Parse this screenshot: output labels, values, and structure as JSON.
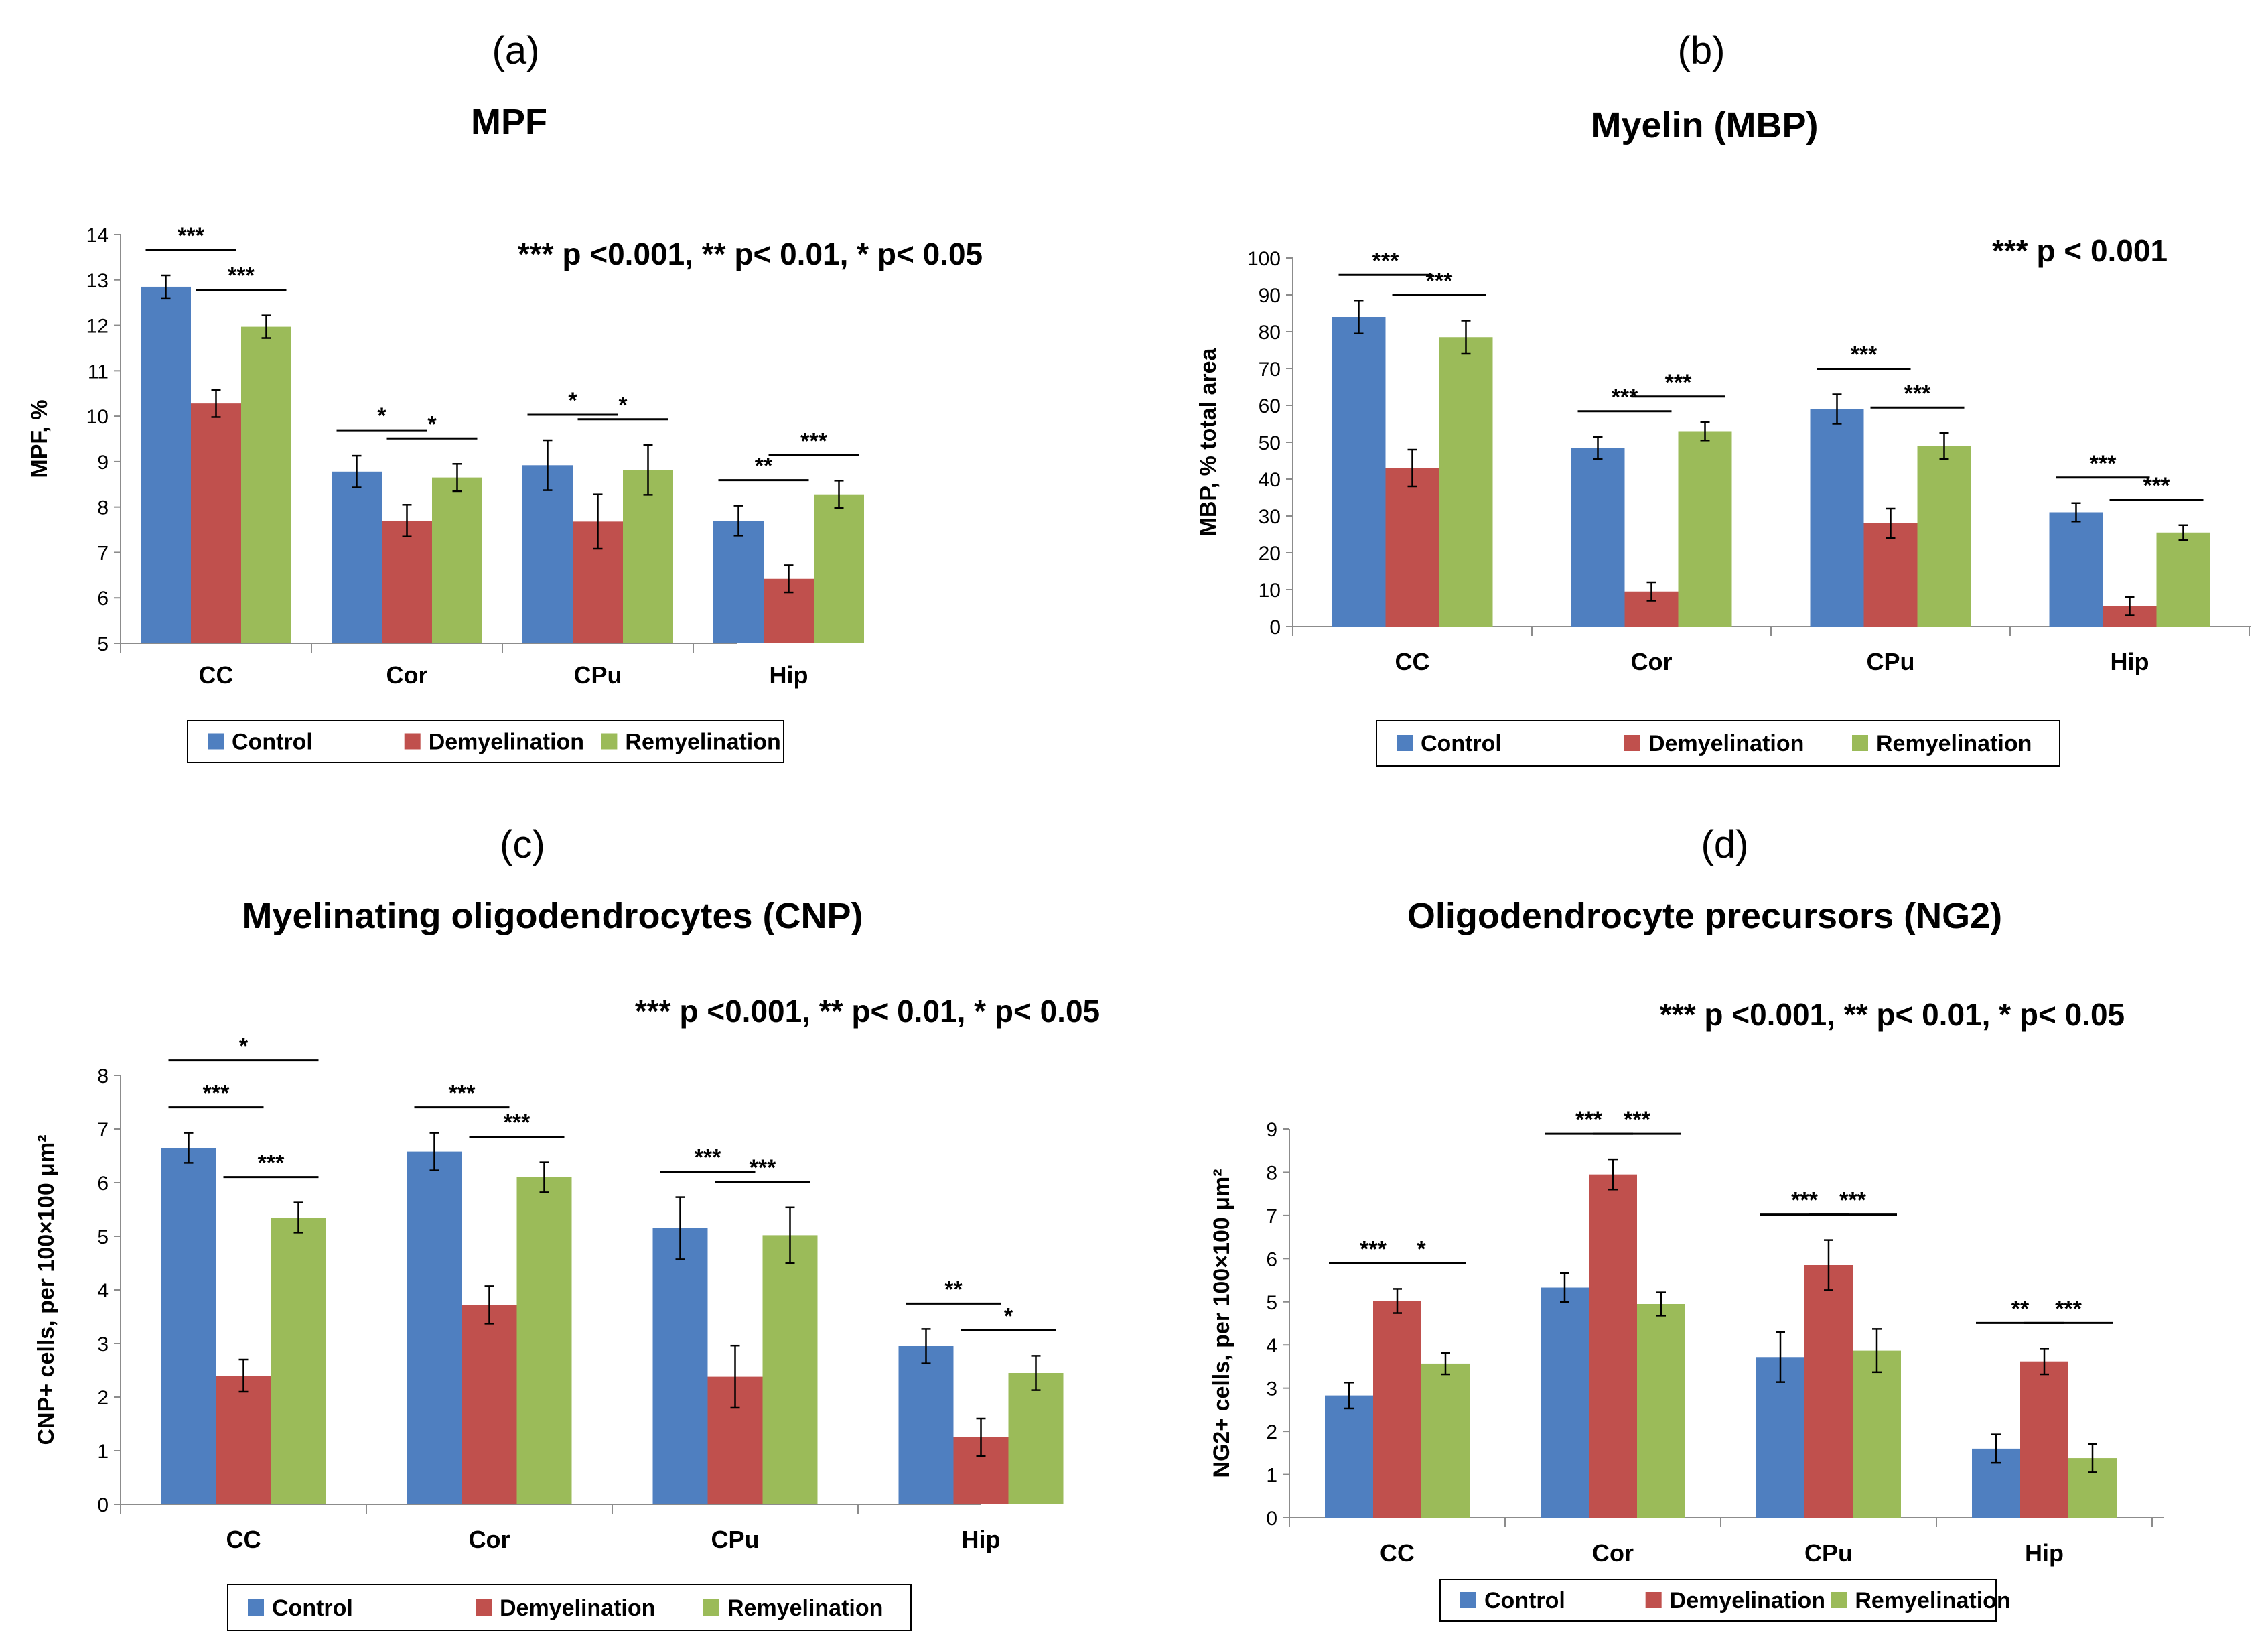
{
  "colors": {
    "Control": "#4f7fc0",
    "Demyelination": "#c0504d",
    "Remyelination": "#9bbb59"
  },
  "chart_data": [
    {
      "type": "bar",
      "panel": "(a)",
      "title": "MPF",
      "note": "*** p <0.001, ** p< 0.01, * p< 0.05",
      "ylabel": "MPF, %",
      "ylim": [
        5,
        14
      ],
      "yticks": [
        5,
        6,
        7,
        8,
        9,
        10,
        11,
        12,
        13,
        14
      ],
      "categories": [
        "CC",
        "Cor",
        "CPu",
        "Hip"
      ],
      "series": [
        {
          "name": "Control",
          "values": [
            12.85,
            8.78,
            8.92,
            7.7
          ],
          "errors": [
            0.25,
            0.35,
            0.55,
            0.33
          ]
        },
        {
          "name": "Demyelination",
          "values": [
            10.28,
            7.7,
            7.68,
            6.42
          ],
          "errors": [
            0.3,
            0.35,
            0.6,
            0.3
          ]
        },
        {
          "name": "Remyelination",
          "values": [
            11.97,
            8.65,
            8.82,
            8.28
          ],
          "errors": [
            0.25,
            0.3,
            0.55,
            0.3
          ]
        }
      ],
      "significance": [
        {
          "category": "CC",
          "pair": [
            0,
            1
          ],
          "label": "***"
        },
        {
          "category": "CC",
          "pair": [
            1,
            2
          ],
          "label": "***"
        },
        {
          "category": "Cor",
          "pair": [
            0,
            1
          ],
          "label": "*"
        },
        {
          "category": "Cor",
          "pair": [
            1,
            2
          ],
          "label": "*"
        },
        {
          "category": "CPu",
          "pair": [
            0,
            1
          ],
          "label": "*"
        },
        {
          "category": "CPu",
          "pair": [
            1,
            2
          ],
          "label": "*"
        },
        {
          "category": "Hip",
          "pair": [
            0,
            1
          ],
          "label": "**"
        },
        {
          "category": "Hip",
          "pair": [
            1,
            2
          ],
          "label": "***"
        }
      ]
    },
    {
      "type": "bar",
      "panel": "(b)",
      "title": "Myelin (MBP)",
      "note": "*** p < 0.001",
      "ylabel": "MBP, % total area",
      "ylim": [
        0,
        100
      ],
      "yticks": [
        0,
        10,
        20,
        30,
        40,
        50,
        60,
        70,
        80,
        90,
        100
      ],
      "categories": [
        "CC",
        "Cor",
        "CPu",
        "Hip"
      ],
      "series": [
        {
          "name": "Control",
          "values": [
            84,
            48.5,
            59,
            31
          ],
          "errors": [
            4.5,
            3,
            4,
            2.5
          ]
        },
        {
          "name": "Demyelination",
          "values": [
            43,
            9.5,
            28,
            5.5
          ],
          "errors": [
            5,
            2.5,
            4,
            2.5
          ]
        },
        {
          "name": "Remyelination",
          "values": [
            78.5,
            53,
            49,
            25.5
          ],
          "errors": [
            4.5,
            2.5,
            3.5,
            2
          ]
        }
      ],
      "significance": [
        {
          "category": "CC",
          "pair": [
            0,
            1
          ],
          "label": "***"
        },
        {
          "category": "CC",
          "pair": [
            1,
            2
          ],
          "label": "***"
        },
        {
          "category": "Cor",
          "pair": [
            0,
            1
          ],
          "label": "***"
        },
        {
          "category": "Cor",
          "pair": [
            1,
            2
          ],
          "label": "***"
        },
        {
          "category": "CPu",
          "pair": [
            0,
            1
          ],
          "label": "***"
        },
        {
          "category": "CPu",
          "pair": [
            1,
            2
          ],
          "label": "***"
        },
        {
          "category": "Hip",
          "pair": [
            0,
            1
          ],
          "label": "***"
        },
        {
          "category": "Hip",
          "pair": [
            1,
            2
          ],
          "label": "***"
        }
      ]
    },
    {
      "type": "bar",
      "panel": "(c)",
      "title": "Myelinating oligodendrocytes (CNP)",
      "note": "*** p <0.001, ** p< 0.01, * p< 0.05",
      "ylabel": "CNP+ cells, per 100×100 μm²",
      "ylim": [
        0,
        8
      ],
      "yticks": [
        0,
        1,
        2,
        3,
        4,
        5,
        6,
        7,
        8
      ],
      "categories": [
        "CC",
        "Cor",
        "CPu",
        "Hip"
      ],
      "series": [
        {
          "name": "Control",
          "values": [
            6.65,
            6.58,
            5.15,
            2.95
          ],
          "errors": [
            0.28,
            0.35,
            0.58,
            0.32
          ]
        },
        {
          "name": "Demyelination",
          "values": [
            2.4,
            3.72,
            2.38,
            1.25
          ],
          "errors": [
            0.3,
            0.35,
            0.58,
            0.35
          ]
        },
        {
          "name": "Remyelination",
          "values": [
            5.35,
            6.1,
            5.02,
            2.45
          ],
          "errors": [
            0.28,
            0.28,
            0.52,
            0.32
          ]
        }
      ],
      "significance": [
        {
          "category": "CC",
          "pair": [
            0,
            2
          ],
          "label": "*"
        },
        {
          "category": "CC",
          "pair": [
            0,
            1
          ],
          "label": "***"
        },
        {
          "category": "CC",
          "pair": [
            1,
            2
          ],
          "label": "***"
        },
        {
          "category": "Cor",
          "pair": [
            0,
            1
          ],
          "label": "***"
        },
        {
          "category": "Cor",
          "pair": [
            1,
            2
          ],
          "label": "***"
        },
        {
          "category": "CPu",
          "pair": [
            0,
            1
          ],
          "label": "***"
        },
        {
          "category": "CPu",
          "pair": [
            1,
            2
          ],
          "label": "***"
        },
        {
          "category": "Hip",
          "pair": [
            0,
            1
          ],
          "label": "**"
        },
        {
          "category": "Hip",
          "pair": [
            1,
            2
          ],
          "label": "*"
        }
      ]
    },
    {
      "type": "bar",
      "panel": "(d)",
      "title": "Oligodendrocyte precursors (NG2)",
      "note": "*** p <0.001, ** p< 0.01, * p< 0.05",
      "ylabel": "NG2+ cells, per 100×100 μm²",
      "ylim": [
        0,
        9
      ],
      "yticks": [
        0,
        1,
        2,
        3,
        4,
        5,
        6,
        7,
        8,
        9
      ],
      "categories": [
        "CC",
        "Cor",
        "CPu",
        "Hip"
      ],
      "series": [
        {
          "name": "Control",
          "values": [
            2.83,
            5.33,
            3.72,
            1.6
          ],
          "errors": [
            0.3,
            0.33,
            0.58,
            0.33
          ]
        },
        {
          "name": "Demyelination",
          "values": [
            5.02,
            7.95,
            5.85,
            3.62
          ],
          "errors": [
            0.28,
            0.35,
            0.58,
            0.3
          ]
        },
        {
          "name": "Remyelination",
          "values": [
            3.57,
            4.95,
            3.87,
            1.38
          ],
          "errors": [
            0.25,
            0.27,
            0.5,
            0.33
          ]
        }
      ],
      "significance": [
        {
          "category": "CC",
          "pair": [
            0,
            1
          ],
          "label": "***"
        },
        {
          "category": "CC",
          "pair": [
            1,
            2
          ],
          "label": "*"
        },
        {
          "category": "Cor",
          "pair": [
            0,
            1
          ],
          "label": "***"
        },
        {
          "category": "Cor",
          "pair": [
            1,
            2
          ],
          "label": "***"
        },
        {
          "category": "CPu",
          "pair": [
            0,
            1
          ],
          "label": "***"
        },
        {
          "category": "CPu",
          "pair": [
            1,
            2
          ],
          "label": "***"
        },
        {
          "category": "Hip",
          "pair": [
            0,
            1
          ],
          "label": "**"
        },
        {
          "category": "Hip",
          "pair": [
            1,
            2
          ],
          "label": "***"
        }
      ]
    }
  ]
}
